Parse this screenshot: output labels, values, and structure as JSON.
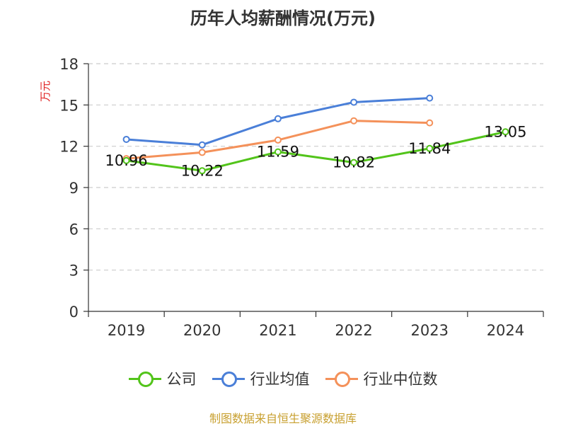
{
  "chart_data": {
    "type": "line",
    "title": "历年人均薪酬情况(万元)",
    "ylabel": "万元",
    "xlabel": "",
    "categories": [
      "2019",
      "2020",
      "2021",
      "2022",
      "2023",
      "2024"
    ],
    "ylim": [
      0,
      18
    ],
    "yticks": [
      0,
      3,
      6,
      9,
      12,
      15,
      18
    ],
    "grid": true,
    "legend_position": "bottom",
    "series": [
      {
        "name": "公司",
        "color": "#52c41a",
        "values": [
          10.96,
          10.22,
          11.59,
          10.82,
          11.84,
          13.05
        ],
        "labels": [
          "10.96",
          "10.22",
          "11.59",
          "10.82",
          "11.84",
          "13.05"
        ]
      },
      {
        "name": "行业均值",
        "color": "#4a7fd8",
        "values": [
          12.5,
          12.1,
          14.0,
          15.2,
          15.5,
          null
        ]
      },
      {
        "name": "行业中位数",
        "color": "#f4915a",
        "values": [
          11.1,
          11.55,
          12.45,
          13.85,
          13.7,
          null
        ]
      }
    ]
  },
  "legend": [
    "公司",
    "行业均值",
    "行业中位数"
  ],
  "source": "制图数据来自恒生聚源数据库"
}
